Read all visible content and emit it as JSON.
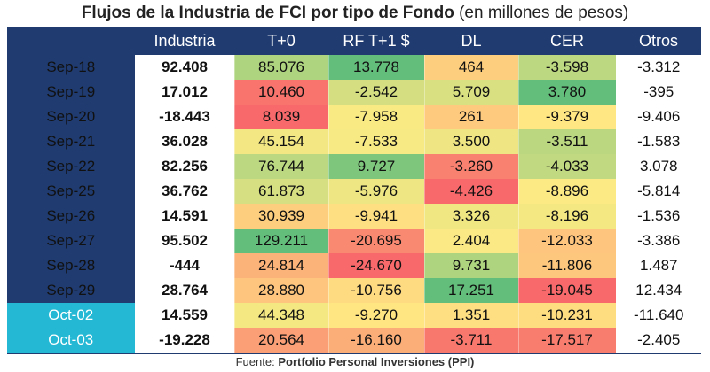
{
  "title": {
    "main": "Flujos de la Industria de FCI por tipo de Fondo",
    "sub": "(en millones de pesos)"
  },
  "source": {
    "prefix": "Fuente:",
    "name": "Portfolio Personal Inversiones (PPI)"
  },
  "colors": {
    "header_bg": "#1f3b70",
    "oct_label_bg": "#24b8d4",
    "negative_text": "#d62a2a",
    "scale_low": "#f8696b",
    "scale_mid": "#ffeb84",
    "scale_high": "#63be7b"
  },
  "chart_data": {
    "type": "table",
    "title": "Flujos de la Industria de FCI por tipo de Fondo (en millones de pesos)",
    "columns": [
      "Industria",
      "T+0",
      "RF T+1 $",
      "DL",
      "CER",
      "Otros"
    ],
    "color_scaled_columns": [
      "T+0",
      "RF T+1 $",
      "DL",
      "CER"
    ],
    "rows": [
      {
        "label": "Sep-18",
        "values": [
          "92.408",
          "85.076",
          "13.778",
          "464",
          "-3.598",
          "-3.312"
        ]
      },
      {
        "label": "Sep-19",
        "values": [
          "17.012",
          "10.460",
          "-2.542",
          "5.709",
          "3.780",
          "-395"
        ]
      },
      {
        "label": "Sep-20",
        "values": [
          "-18.443",
          "8.039",
          "-7.958",
          "261",
          "-9.379",
          "-9.406"
        ]
      },
      {
        "label": "Sep-21",
        "values": [
          "36.028",
          "45.154",
          "-7.533",
          "3.500",
          "-3.511",
          "-1.583"
        ]
      },
      {
        "label": "Sep-22",
        "values": [
          "82.256",
          "76.744",
          "9.727",
          "-3.260",
          "-4.033",
          "3.078"
        ]
      },
      {
        "label": "Sep-25",
        "values": [
          "36.762",
          "61.873",
          "-5.976",
          "-4.426",
          "-8.896",
          "-5.814"
        ]
      },
      {
        "label": "Sep-26",
        "values": [
          "14.591",
          "30.939",
          "-9.941",
          "3.326",
          "-8.196",
          "-1.536"
        ]
      },
      {
        "label": "Sep-27",
        "values": [
          "95.502",
          "129.211",
          "-20.695",
          "2.404",
          "-12.033",
          "-3.386"
        ]
      },
      {
        "label": "Sep-28",
        "values": [
          "-444",
          "24.814",
          "-24.670",
          "9.731",
          "-11.806",
          "1.487"
        ]
      },
      {
        "label": "Sep-29",
        "values": [
          "28.764",
          "28.880",
          "-10.756",
          "17.251",
          "-19.045",
          "12.434"
        ]
      },
      {
        "label": "Oct-02",
        "values": [
          "14.559",
          "44.348",
          "-9.270",
          "1.351",
          "-10.231",
          "-11.640"
        ]
      },
      {
        "label": "Oct-03",
        "values": [
          "-19.228",
          "20.564",
          "-16.160",
          "-3.711",
          "-17.517",
          "-2.405"
        ]
      }
    ]
  }
}
